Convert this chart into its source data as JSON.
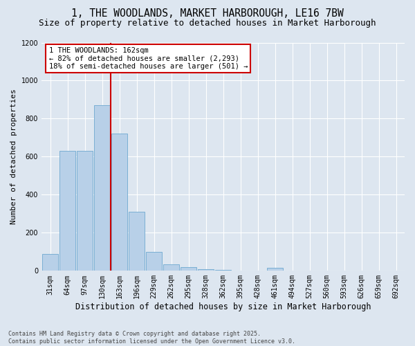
{
  "title": "1, THE WOODLANDS, MARKET HARBOROUGH, LE16 7BW",
  "subtitle": "Size of property relative to detached houses in Market Harborough",
  "xlabel": "Distribution of detached houses by size in Market Harborough",
  "ylabel": "Number of detached properties",
  "categories": [
    "31sqm",
    "64sqm",
    "97sqm",
    "130sqm",
    "163sqm",
    "196sqm",
    "229sqm",
    "262sqm",
    "295sqm",
    "328sqm",
    "362sqm",
    "395sqm",
    "428sqm",
    "461sqm",
    "494sqm",
    "527sqm",
    "560sqm",
    "593sqm",
    "626sqm",
    "659sqm",
    "692sqm"
  ],
  "values": [
    90,
    630,
    630,
    870,
    720,
    310,
    100,
    35,
    20,
    10,
    5,
    0,
    0,
    15,
    0,
    0,
    0,
    0,
    0,
    0,
    0
  ],
  "bar_color": "#b8d0e8",
  "bar_edgecolor": "#7aafd4",
  "vline_index": 4,
  "vline_color": "#cc0000",
  "annotation_text": "1 THE WOODLANDS: 162sqm\n← 82% of detached houses are smaller (2,293)\n18% of semi-detached houses are larger (501) →",
  "annotation_box_facecolor": "#ffffff",
  "annotation_box_edgecolor": "#cc0000",
  "ylim": [
    0,
    1200
  ],
  "yticks": [
    0,
    200,
    400,
    600,
    800,
    1000,
    1200
  ],
  "background_color": "#dde6f0",
  "footer": "Contains HM Land Registry data © Crown copyright and database right 2025.\nContains public sector information licensed under the Open Government Licence v3.0.",
  "title_fontsize": 10.5,
  "subtitle_fontsize": 9,
  "ylabel_fontsize": 8,
  "xlabel_fontsize": 8.5,
  "tick_fontsize": 7,
  "annotation_fontsize": 7.5,
  "footer_fontsize": 6
}
